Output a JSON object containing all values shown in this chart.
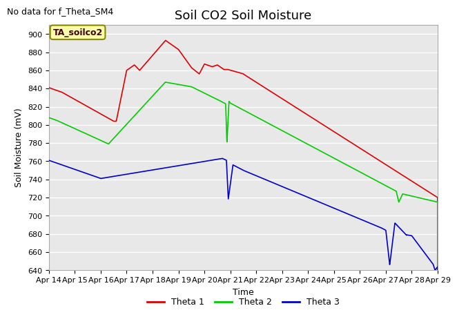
{
  "title": "Soil CO2 Soil Moisture",
  "subtitle": "No data for f_Theta_SM4",
  "ylabel": "Soil Moisture (mV)",
  "xlabel": "Time",
  "annotation": "TA_soilco2",
  "ylim": [
    640,
    910
  ],
  "xlim": [
    0,
    15
  ],
  "yticks": [
    640,
    660,
    680,
    700,
    720,
    740,
    760,
    780,
    800,
    820,
    840,
    860,
    880,
    900
  ],
  "xtick_labels": [
    "Apr 14",
    "Apr 15",
    "Apr 16",
    "Apr 17",
    "Apr 18",
    "Apr 19",
    "Apr 20",
    "Apr 21",
    "Apr 22",
    "Apr 23",
    "Apr 24",
    "Apr 25",
    "Apr 26",
    "Apr 27",
    "Apr 28",
    "Apr 29"
  ],
  "plot_bg_color": "#e8e8e8",
  "grid_color": "#ffffff",
  "colors": {
    "theta1": "#dd0000",
    "theta2": "#00cc00",
    "theta3": "#0000cc"
  },
  "legend_labels": [
    "Theta 1",
    "Theta 2",
    "Theta 3"
  ],
  "title_fontsize": 13,
  "subtitle_fontsize": 9,
  "axis_label_fontsize": 9,
  "tick_fontsize": 8,
  "legend_fontsize": 9
}
